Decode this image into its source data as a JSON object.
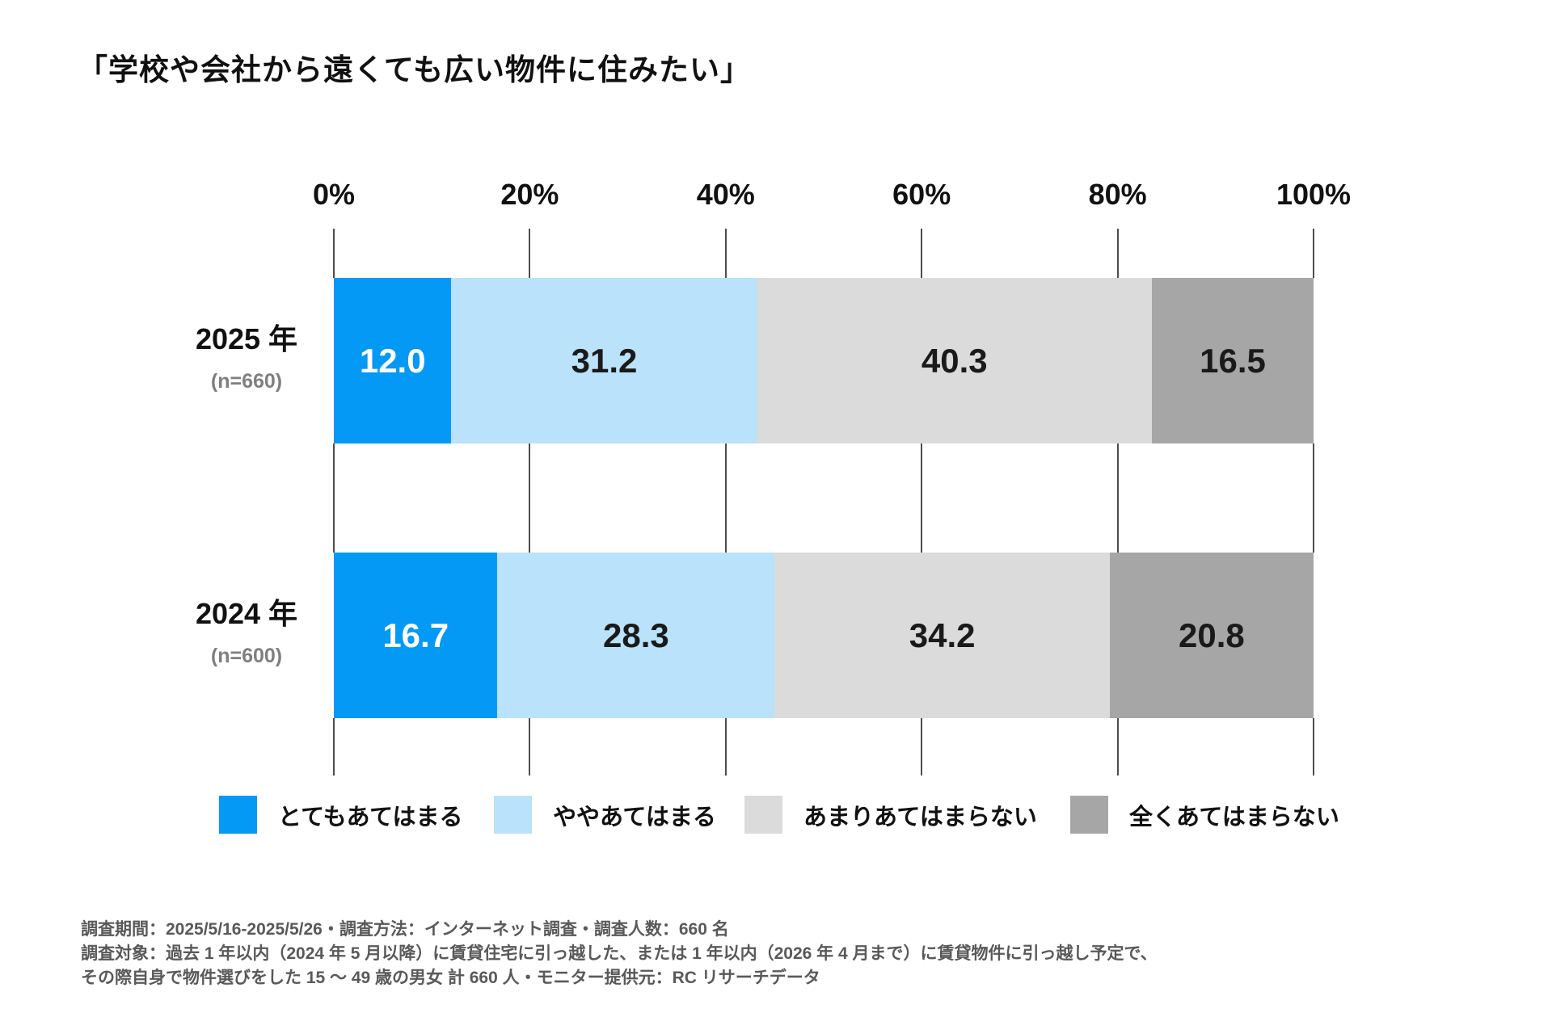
{
  "title": "「学校や会社から遠くても広い物件に住みたい」",
  "chart_data": {
    "type": "bar",
    "stacked": true,
    "orientation": "horizontal",
    "unit": "%",
    "title": "「学校や会社から遠くても広い物件に住みたい」",
    "xlim": [
      0,
      100
    ],
    "x_ticks": [
      "0%",
      "20%",
      "40%",
      "60%",
      "80%",
      "100%"
    ],
    "grid": "vertical-ticks-between-rows",
    "legend_position": "bottom",
    "categories": [
      {
        "label": "2025 年",
        "n_label": "(n=660)"
      },
      {
        "label": "2024 年",
        "n_label": "(n=600)"
      }
    ],
    "series": [
      {
        "name": "とてもあてはまる",
        "color": "#0399F4",
        "text_color": "#ffffff",
        "values": [
          12.0,
          16.7
        ]
      },
      {
        "name": "ややあてはまる",
        "color": "#BAE2FA",
        "text_color": "#1a1a1a",
        "values": [
          31.2,
          28.3
        ]
      },
      {
        "name": "あまりあてはまらない",
        "color": "#DBDBDB",
        "text_color": "#1a1a1a",
        "values": [
          40.3,
          34.2
        ]
      },
      {
        "name": "全くあてはまらない",
        "color": "#A6A6A6",
        "text_color": "#1a1a1a",
        "values": [
          16.5,
          20.8
        ]
      }
    ]
  },
  "footer": {
    "line1": "調査期間：2025/5/16-2025/5/26・調査方法：インターネット調査・調査人数：660 名",
    "line2": "調査対象：過去 1 年以内（2024 年 5 月以降）に賃貸住宅に引っ越した、または 1 年以内（2026 年 4 月まで）に賃貸物件に引っ越し予定で、",
    "line3": "その際自身で物件選びをした 15 ～ 49 歳の男女 計 660 人・モニター提供元：RC リサーチデータ"
  }
}
